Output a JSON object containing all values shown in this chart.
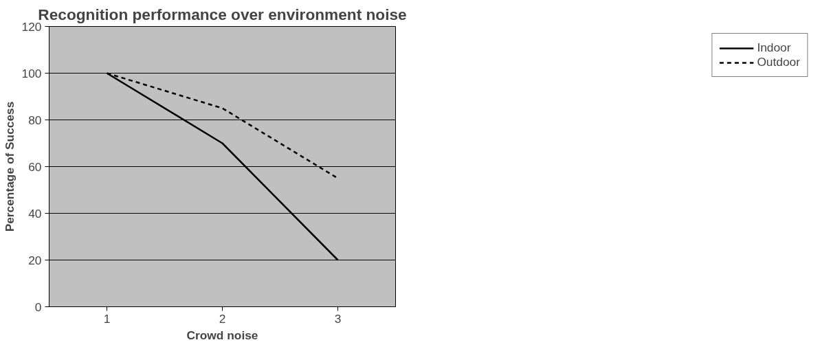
{
  "chart_data": {
    "type": "line",
    "title": "Recognition performance over environment noise",
    "xlabel": "Crowd noise",
    "ylabel": "Percentage of Success",
    "categories": [
      "1",
      "2",
      "3"
    ],
    "series": [
      {
        "name": "Indoor",
        "color": "#000000",
        "line_style": "solid",
        "values": [
          100,
          70,
          20
        ]
      },
      {
        "name": "Outdoor",
        "color": "#000000",
        "line_style": "dashed",
        "values": [
          100,
          85,
          55
        ]
      }
    ],
    "ylim": [
      0,
      120
    ],
    "yticks": [
      0,
      20,
      40,
      60,
      80,
      100,
      120
    ],
    "grid": "y",
    "legend": "right"
  }
}
